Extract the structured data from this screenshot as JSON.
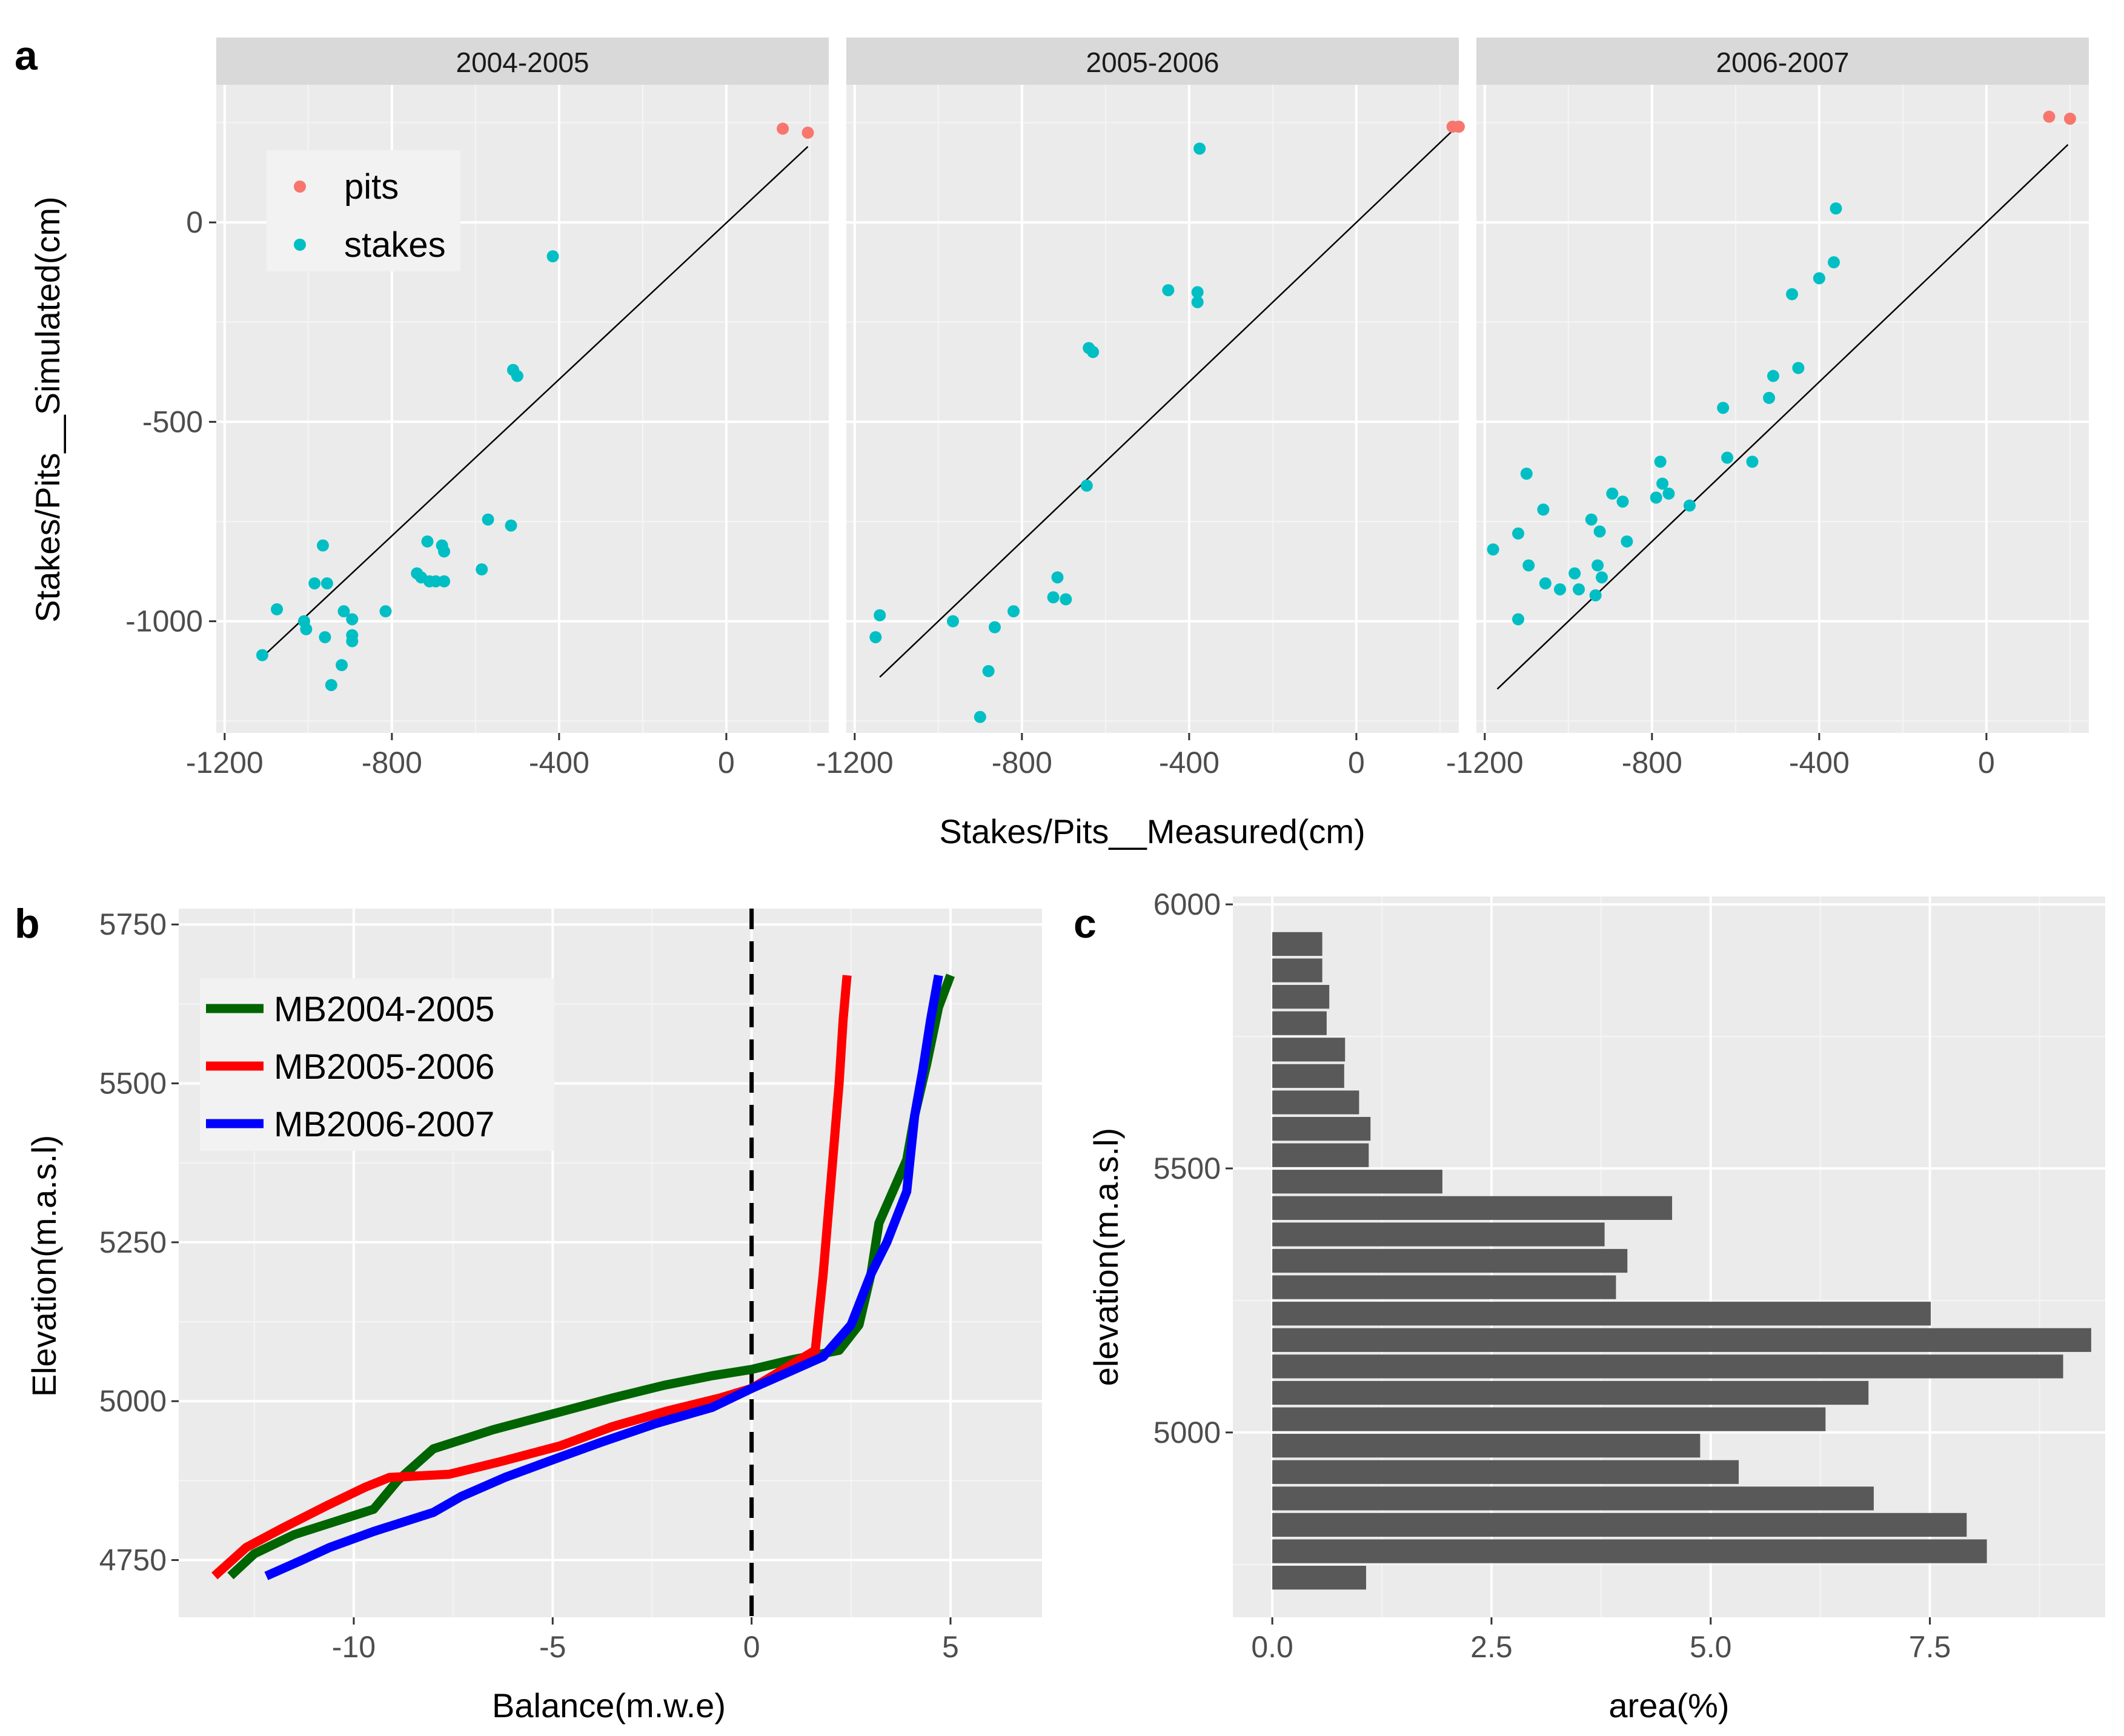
{
  "panel_labels": [
    "a",
    "b",
    "c"
  ],
  "chart_data": [
    {
      "type": "scatter",
      "panel": "a",
      "facets": [
        "2004-2005",
        "2005-2006",
        "2006-2007"
      ],
      "xlabel": "Stakes/Pits__Measured(cm)",
      "ylabel": "Stakes/Pits__Simulated(cm)",
      "xticks": [
        -1200,
        -800,
        -400,
        0
      ],
      "yticks": [
        0,
        -500,
        -1000
      ],
      "xlim": [
        -1220,
        245
      ],
      "ylim": [
        -1280,
        345
      ],
      "legend": {
        "position": "top-left",
        "entries": [
          {
            "name": "pits",
            "color": "#F8766D"
          },
          {
            "name": "stakes",
            "color": "#00BFC4"
          }
        ]
      },
      "panels": [
        {
          "facet": "2004-2005",
          "line": [
            [
              -1110,
              -1090
            ],
            [
              195,
              190
            ]
          ],
          "pits": [
            [
              135,
              235
            ],
            [
              195,
              225
            ]
          ],
          "stakes": [
            [
              -1110,
              -1085
            ],
            [
              -1075,
              -970
            ],
            [
              -1010,
              -1000
            ],
            [
              -1005,
              -1020
            ],
            [
              -985,
              -905
            ],
            [
              -965,
              -810
            ],
            [
              -960,
              -1040
            ],
            [
              -955,
              -905
            ],
            [
              -945,
              -1160
            ],
            [
              -920,
              -1110
            ],
            [
              -915,
              -975
            ],
            [
              -895,
              -995
            ],
            [
              -895,
              -1035
            ],
            [
              -895,
              -1050
            ],
            [
              -815,
              -975
            ],
            [
              -740,
              -880
            ],
            [
              -730,
              -890
            ],
            [
              -715,
              -800
            ],
            [
              -710,
              -900
            ],
            [
              -695,
              -900
            ],
            [
              -680,
              -810
            ],
            [
              -675,
              -825
            ],
            [
              -675,
              -900
            ],
            [
              -585,
              -870
            ],
            [
              -570,
              -745
            ],
            [
              -515,
              -760
            ],
            [
              -510,
              -370
            ],
            [
              -500,
              -385
            ],
            [
              -415,
              -85
            ]
          ]
        },
        {
          "facet": "2005-2006",
          "line": [
            [
              -1140,
              -1140
            ],
            [
              240,
              240
            ]
          ],
          "pits": [
            [
              230,
              240
            ],
            [
              245,
              240
            ]
          ],
          "stakes": [
            [
              -1150,
              -1040
            ],
            [
              -1140,
              -985
            ],
            [
              -965,
              -1000
            ],
            [
              -900,
              -1240
            ],
            [
              -880,
              -1125
            ],
            [
              -865,
              -1015
            ],
            [
              -820,
              -975
            ],
            [
              -725,
              -940
            ],
            [
              -715,
              -890
            ],
            [
              -695,
              -945
            ],
            [
              -645,
              -660
            ],
            [
              -640,
              -315
            ],
            [
              -630,
              -325
            ],
            [
              -450,
              -170
            ],
            [
              -380,
              -175
            ],
            [
              -380,
              -200
            ],
            [
              -375,
              185
            ]
          ]
        },
        {
          "facet": "2006-2007",
          "line": [
            [
              -1170,
              -1170
            ],
            [
              195,
              195
            ]
          ],
          "pits": [
            [
              150,
              265
            ],
            [
              200,
              260
            ]
          ],
          "stakes": [
            [
              -1180,
              -820
            ],
            [
              -1120,
              -995
            ],
            [
              -1120,
              -780
            ],
            [
              -1100,
              -630
            ],
            [
              -1095,
              -860
            ],
            [
              -1060,
              -720
            ],
            [
              -1055,
              -905
            ],
            [
              -1020,
              -920
            ],
            [
              -985,
              -880
            ],
            [
              -975,
              -920
            ],
            [
              -945,
              -745
            ],
            [
              -935,
              -935
            ],
            [
              -930,
              -860
            ],
            [
              -925,
              -775
            ],
            [
              -920,
              -890
            ],
            [
              -895,
              -680
            ],
            [
              -870,
              -700
            ],
            [
              -860,
              -800
            ],
            [
              -790,
              -690
            ],
            [
              -780,
              -600
            ],
            [
              -775,
              -655
            ],
            [
              -760,
              -680
            ],
            [
              -710,
              -710
            ],
            [
              -630,
              -465
            ],
            [
              -620,
              -590
            ],
            [
              -560,
              -600
            ],
            [
              -520,
              -440
            ],
            [
              -510,
              -385
            ],
            [
              -465,
              -180
            ],
            [
              -450,
              -365
            ],
            [
              -400,
              -140
            ],
            [
              -365,
              -100
            ],
            [
              -360,
              35
            ]
          ]
        }
      ]
    },
    {
      "type": "line",
      "panel": "b",
      "xlabel": "Balance(m.w.e)",
      "ylabel": "Elevation(m.a.s.l)",
      "xticks": [
        -10,
        -5,
        0,
        5
      ],
      "yticks": [
        4750,
        5000,
        5250,
        5500,
        5750
      ],
      "xlim": [
        -14.4,
        7.3
      ],
      "ylim": [
        4660,
        5775
      ],
      "vline": {
        "x": 0,
        "style": "dashed",
        "color": "#000000"
      },
      "legend": {
        "position": "top-left"
      },
      "series": [
        {
          "name": "MB2004-2005",
          "color": "#006400",
          "points": [
            [
              -13.1,
              4725
            ],
            [
              -12.5,
              4760
            ],
            [
              -11.5,
              4790
            ],
            [
              -10.5,
              4810
            ],
            [
              -9.5,
              4830
            ],
            [
              -8.9,
              4875
            ],
            [
              -8.0,
              4925
            ],
            [
              -6.5,
              4955
            ],
            [
              -5.0,
              4980
            ],
            [
              -3.5,
              5005
            ],
            [
              -2.2,
              5025
            ],
            [
              -1.0,
              5040
            ],
            [
              0.0,
              5050
            ],
            [
              1.0,
              5065
            ],
            [
              2.2,
              5080
            ],
            [
              2.7,
              5120
            ],
            [
              3.0,
              5200
            ],
            [
              3.2,
              5280
            ],
            [
              3.9,
              5380
            ],
            [
              4.1,
              5450
            ],
            [
              4.4,
              5530
            ],
            [
              4.7,
              5620
            ],
            [
              5.0,
              5670
            ]
          ]
        },
        {
          "name": "MB2005-2006",
          "color": "#FF0000",
          "points": [
            [
              -13.5,
              4725
            ],
            [
              -12.7,
              4770
            ],
            [
              -11.8,
              4800
            ],
            [
              -10.7,
              4835
            ],
            [
              -9.7,
              4865
            ],
            [
              -9.1,
              4880
            ],
            [
              -7.6,
              4885
            ],
            [
              -6.3,
              4905
            ],
            [
              -4.8,
              4930
            ],
            [
              -3.5,
              4960
            ],
            [
              -2.1,
              4985
            ],
            [
              -0.8,
              5005
            ],
            [
              0.0,
              5020
            ],
            [
              1.6,
              5080
            ],
            [
              1.8,
              5200
            ],
            [
              2.0,
              5350
            ],
            [
              2.2,
              5500
            ],
            [
              2.3,
              5600
            ],
            [
              2.4,
              5670
            ]
          ]
        },
        {
          "name": "MB2006-2007",
          "color": "#0000FF",
          "points": [
            [
              -12.2,
              4725
            ],
            [
              -11.3,
              4750
            ],
            [
              -10.6,
              4770
            ],
            [
              -9.5,
              4795
            ],
            [
              -8.0,
              4825
            ],
            [
              -7.3,
              4850
            ],
            [
              -6.2,
              4880
            ],
            [
              -4.9,
              4910
            ],
            [
              -3.8,
              4935
            ],
            [
              -2.4,
              4965
            ],
            [
              -1.0,
              4990
            ],
            [
              0.0,
              5020
            ],
            [
              1.8,
              5070
            ],
            [
              2.5,
              5120
            ],
            [
              3.0,
              5200
            ],
            [
              3.4,
              5250
            ],
            [
              3.9,
              5330
            ],
            [
              4.1,
              5450
            ],
            [
              4.3,
              5520
            ],
            [
              4.5,
              5600
            ],
            [
              4.7,
              5670
            ]
          ]
        }
      ]
    },
    {
      "type": "bar",
      "panel": "c",
      "orientation": "horizontal",
      "xlabel": "area(%)",
      "ylabel": "elevation(m.a.s.l)",
      "xticks": [
        0.0,
        2.5,
        5.0,
        7.5
      ],
      "yticks": [
        5000,
        5500,
        6000
      ],
      "xlim": [
        -0.45,
        9.5
      ],
      "ylim": [
        4650,
        6015
      ],
      "bar_color": "#595959",
      "categories": [
        4725,
        4775,
        4825,
        4875,
        4925,
        4975,
        5025,
        5075,
        5125,
        5175,
        5225,
        5275,
        5325,
        5375,
        5425,
        5475,
        5525,
        5575,
        5625,
        5675,
        5725,
        5775,
        5825,
        5875,
        5925
      ],
      "values": [
        1.07,
        8.15,
        7.92,
        6.86,
        5.32,
        4.88,
        6.31,
        6.8,
        9.02,
        9.34,
        7.51,
        3.92,
        4.05,
        3.79,
        4.56,
        1.94,
        1.1,
        1.12,
        0.99,
        0.82,
        0.83,
        0.62,
        0.65,
        0.57,
        0.57
      ]
    }
  ]
}
